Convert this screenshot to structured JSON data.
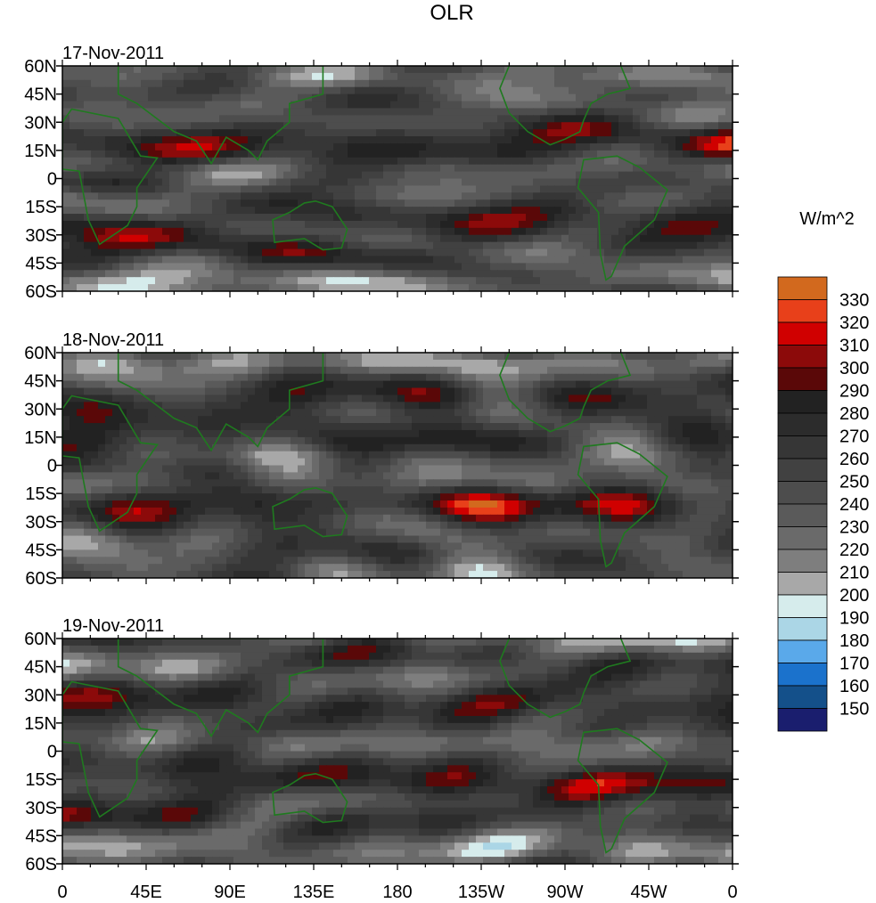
{
  "title": "OLR",
  "panels": [
    {
      "date": "17-Nov-2011",
      "seed": 11
    },
    {
      "date": "18-Nov-2011",
      "seed": 23
    },
    {
      "date": "19-Nov-2011",
      "seed": 37
    }
  ],
  "lat_labels": [
    "60N",
    "45N",
    "30N",
    "15N",
    "0",
    "15S",
    "30S",
    "45S",
    "60S"
  ],
  "lon_labels": [
    "0",
    "45E",
    "90E",
    "135E",
    "180",
    "135W",
    "90W",
    "45W",
    "0"
  ],
  "colorbar": {
    "units": "W/m^2",
    "labels": [
      "330",
      "320",
      "310",
      "300",
      "290",
      "280",
      "270",
      "260",
      "250",
      "240",
      "230",
      "220",
      "210",
      "200",
      "190",
      "180",
      "170",
      "160",
      "150"
    ],
    "colors": [
      "#d2691e",
      "#e8401a",
      "#d00000",
      "#8c0a0a",
      "#5a0808",
      "#222222",
      "#2c2c2c",
      "#363636",
      "#414141",
      "#4d4d4d",
      "#5a5a5a",
      "#6a6a6a",
      "#7e7e7e",
      "#a8a8a8",
      "#d6ecec",
      "#abd6e6",
      "#5aa9ea",
      "#1b72cc",
      "#14508a",
      "#1a1e6e"
    ]
  },
  "chart_data": {
    "type": "heatmap",
    "title": "OLR",
    "units": "W/m^2",
    "variable": "OLR",
    "times": [
      "17-Nov-2011",
      "18-Nov-2011",
      "19-Nov-2011"
    ],
    "lat_range": [
      -60,
      60
    ],
    "lon_range": [
      0,
      360
    ],
    "lat_ticks": [
      60,
      45,
      30,
      15,
      0,
      -15,
      -30,
      -45,
      -60
    ],
    "lon_ticks": [
      0,
      45,
      90,
      135,
      180,
      225,
      270,
      315,
      360
    ],
    "levels": [
      150,
      160,
      170,
      180,
      190,
      200,
      210,
      220,
      230,
      240,
      250,
      260,
      270,
      280,
      290,
      300,
      310,
      320,
      330
    ]
  }
}
